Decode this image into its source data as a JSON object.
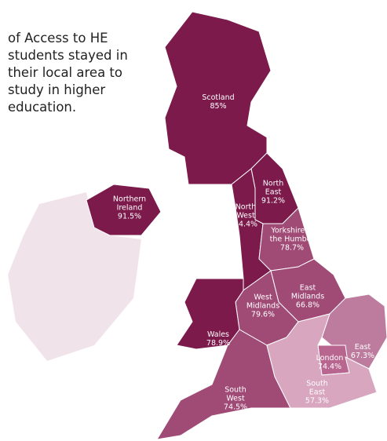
{
  "intro": "of Access to HE students stayed in their local area to study in higher education.",
  "regions": [
    {
      "name": "Scotland",
      "value": 85,
      "value_label": "85%",
      "color": "#7b1a4b"
    },
    {
      "name": "Northern Ireland",
      "value": 91.5,
      "value_label": "91.5%",
      "color": "#7b1a4b"
    },
    {
      "name": "North East",
      "value": 91.2,
      "value_label": "91.2%",
      "color": "#7b1a4b"
    },
    {
      "name": "North West",
      "value": 84.4,
      "value_label": "84.4%",
      "color": "#7b1a4b"
    },
    {
      "name": "Yorkshire & the Humber",
      "value": 78.7,
      "value_label": "78.7%",
      "color": "#a04a76"
    },
    {
      "name": "East Midlands",
      "value": 66.8,
      "value_label": "66.8%",
      "color": "#a04a76"
    },
    {
      "name": "West Midlands",
      "value": 79.6,
      "value_label": "79.6%",
      "color": "#a04a76"
    },
    {
      "name": "Wales",
      "value": 78.9,
      "value_label": "78.9%",
      "color": "#7b1a4b"
    },
    {
      "name": "East",
      "value": 67.3,
      "value_label": "67.3%",
      "color": "#bd7c9e"
    },
    {
      "name": "London",
      "value": 74.4,
      "value_label": "74.4%",
      "color": "#b8668f"
    },
    {
      "name": "South West",
      "value": 74.5,
      "value_label": "74.5%",
      "color": "#a04a76"
    },
    {
      "name": "South East",
      "value": 57.3,
      "value_label": "57.3%",
      "color": "#d8a6bf"
    }
  ]
}
